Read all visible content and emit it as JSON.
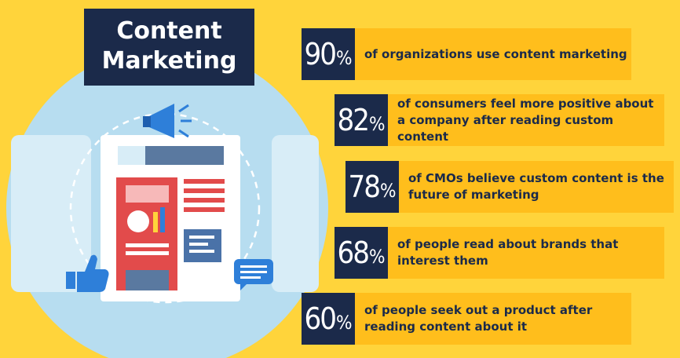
{
  "title": {
    "line1": "Content",
    "line2": "Marketing"
  },
  "colors": {
    "background": "#FFD43B",
    "navy": "#1B2A4A",
    "stat_bar": "#FFBE1C",
    "circle": "#B7DDF0",
    "accent_red": "#E24B4B",
    "accent_blue": "#2E7FD9"
  },
  "icons": [
    "megaphone-icon",
    "thumbs-up-icon",
    "chat-bubble-icon",
    "document-illustration"
  ],
  "stats": [
    {
      "value": "90",
      "unit": "%",
      "text": "of organizations use content marketing"
    },
    {
      "value": "82",
      "unit": "%",
      "text": "of consumers feel more positive about a company after reading custom content"
    },
    {
      "value": "78",
      "unit": "%",
      "text": "of CMOs believe custom content is the future of marketing"
    },
    {
      "value": "68",
      "unit": "%",
      "text": "of people read about brands that interest them"
    },
    {
      "value": "60",
      "unit": "%",
      "text": "of people seek out a product after reading content about it"
    }
  ]
}
